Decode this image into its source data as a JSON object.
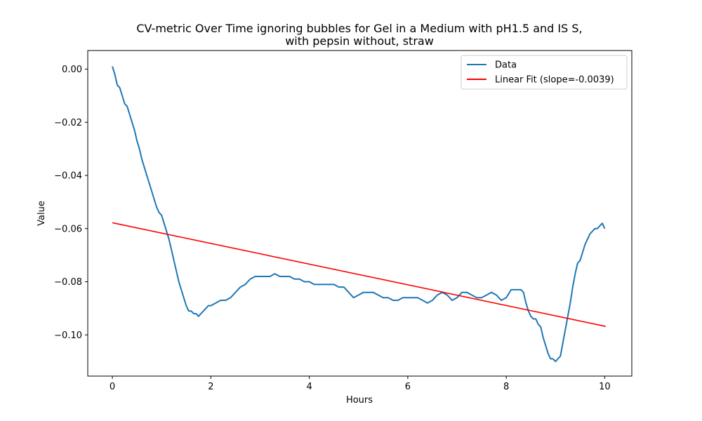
{
  "chart_data": {
    "type": "line",
    "title": "CV-metric Over Time ignoring bubbles for Gel in a Medium with pH1.5 and IS S,",
    "subtitle": "with pepsin without, straw",
    "xlabel": "Hours",
    "ylabel": "Value",
    "xlim": [
      -0.5,
      10.55
    ],
    "ylim": [
      -0.1155,
      0.007
    ],
    "xticks": [
      0,
      2,
      4,
      6,
      8,
      10
    ],
    "xtick_labels": [
      "0",
      "2",
      "4",
      "6",
      "8",
      "10"
    ],
    "yticks": [
      0.0,
      -0.02,
      -0.04,
      -0.06,
      -0.08,
      -0.1
    ],
    "ytick_labels": [
      "0.00",
      "−0.02",
      "−0.04",
      "−0.06",
      "−0.08",
      "−0.10"
    ],
    "grid": false,
    "legend_position": "top-right",
    "series": [
      {
        "name": "Data",
        "color": "#1f77b4",
        "x": [
          0,
          0.05,
          0.1,
          0.15,
          0.2,
          0.25,
          0.3,
          0.35,
          0.4,
          0.45,
          0.5,
          0.55,
          0.6,
          0.65,
          0.7,
          0.75,
          0.8,
          0.85,
          0.9,
          0.95,
          1.0,
          1.05,
          1.1,
          1.15,
          1.2,
          1.25,
          1.3,
          1.35,
          1.4,
          1.45,
          1.5,
          1.55,
          1.6,
          1.65,
          1.7,
          1.75,
          1.8,
          1.85,
          1.9,
          1.95,
          2.0,
          2.1,
          2.2,
          2.3,
          2.4,
          2.5,
          2.6,
          2.7,
          2.8,
          2.9,
          3.0,
          3.1,
          3.2,
          3.3,
          3.4,
          3.5,
          3.6,
          3.7,
          3.8,
          3.9,
          4.0,
          4.1,
          4.2,
          4.3,
          4.4,
          4.5,
          4.6,
          4.7,
          4.8,
          4.9,
          5.0,
          5.1,
          5.2,
          5.3,
          5.4,
          5.5,
          5.6,
          5.7,
          5.8,
          5.9,
          6.0,
          6.1,
          6.2,
          6.3,
          6.4,
          6.5,
          6.6,
          6.7,
          6.8,
          6.9,
          7.0,
          7.1,
          7.2,
          7.3,
          7.4,
          7.5,
          7.6,
          7.7,
          7.8,
          7.9,
          8.0,
          8.1,
          8.2,
          8.3,
          8.35,
          8.4,
          8.45,
          8.5,
          8.55,
          8.6,
          8.65,
          8.7,
          8.75,
          8.8,
          8.85,
          8.9,
          8.95,
          9.0,
          9.05,
          9.1,
          9.15,
          9.2,
          9.25,
          9.3,
          9.35,
          9.4,
          9.45,
          9.5,
          9.55,
          9.6,
          9.65,
          9.7,
          9.75,
          9.8,
          9.85,
          9.9,
          9.95,
          10.0
        ],
        "y": [
          0.001,
          -0.002,
          -0.006,
          -0.007,
          -0.01,
          -0.013,
          -0.014,
          -0.017,
          -0.02,
          -0.023,
          -0.027,
          -0.03,
          -0.034,
          -0.037,
          -0.04,
          -0.043,
          -0.046,
          -0.049,
          -0.052,
          -0.054,
          -0.055,
          -0.058,
          -0.061,
          -0.064,
          -0.068,
          -0.072,
          -0.076,
          -0.08,
          -0.083,
          -0.086,
          -0.089,
          -0.091,
          -0.091,
          -0.092,
          -0.092,
          -0.093,
          -0.092,
          -0.091,
          -0.09,
          -0.089,
          -0.089,
          -0.088,
          -0.087,
          -0.087,
          -0.086,
          -0.084,
          -0.082,
          -0.081,
          -0.079,
          -0.078,
          -0.078,
          -0.078,
          -0.078,
          -0.077,
          -0.078,
          -0.078,
          -0.078,
          -0.079,
          -0.079,
          -0.08,
          -0.08,
          -0.081,
          -0.081,
          -0.081,
          -0.081,
          -0.081,
          -0.082,
          -0.082,
          -0.084,
          -0.086,
          -0.085,
          -0.084,
          -0.084,
          -0.084,
          -0.085,
          -0.086,
          -0.086,
          -0.087,
          -0.087,
          -0.086,
          -0.086,
          -0.086,
          -0.086,
          -0.087,
          -0.088,
          -0.087,
          -0.085,
          -0.084,
          -0.085,
          -0.087,
          -0.086,
          -0.084,
          -0.084,
          -0.085,
          -0.086,
          -0.086,
          -0.085,
          -0.084,
          -0.085,
          -0.087,
          -0.086,
          -0.083,
          -0.083,
          -0.083,
          -0.084,
          -0.088,
          -0.091,
          -0.093,
          -0.094,
          -0.094,
          -0.096,
          -0.097,
          -0.101,
          -0.104,
          -0.107,
          -0.109,
          -0.109,
          -0.11,
          -0.109,
          -0.108,
          -0.103,
          -0.098,
          -0.093,
          -0.088,
          -0.082,
          -0.077,
          -0.073,
          -0.072,
          -0.069,
          -0.066,
          -0.064,
          -0.062,
          -0.061,
          -0.06,
          -0.06,
          -0.059,
          -0.058,
          -0.06
        ]
      },
      {
        "name": "Linear Fit (slope=-0.0039)",
        "color": "#ff0000",
        "x": [
          0,
          10.02
        ],
        "y": [
          -0.0578,
          -0.0968
        ]
      }
    ]
  }
}
